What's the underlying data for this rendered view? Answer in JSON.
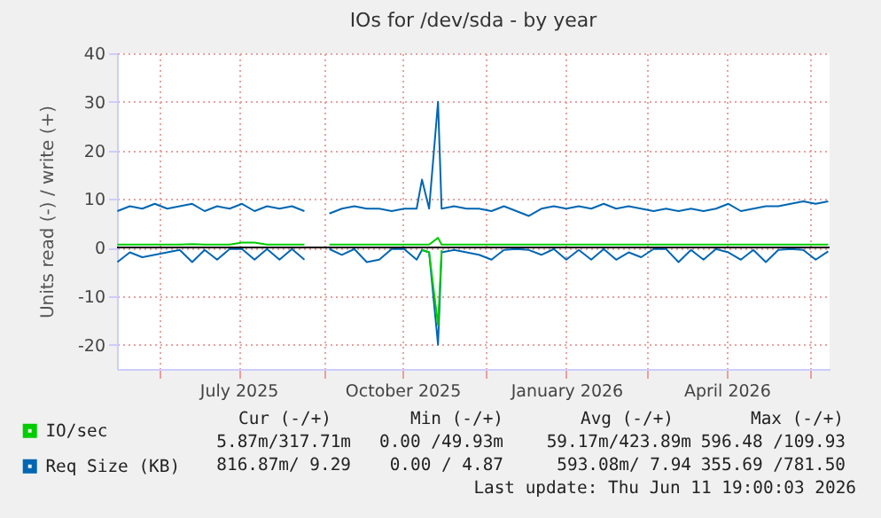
{
  "chart_data": {
    "type": "line",
    "title": "IOs for /dev/sda - by year",
    "ylabel": "Units read (-) / write (+)",
    "x": [
      "2025-05-08",
      "2025-05-15",
      "2025-05-22",
      "2025-05-29",
      "2025-06-05",
      "2025-06-12",
      "2025-06-19",
      "2025-06-26",
      "2025-07-03",
      "2025-07-10",
      "2025-07-17",
      "2025-07-24",
      "2025-07-31",
      "2025-08-07",
      "2025-08-14",
      "2025-08-21",
      "2025-08-28",
      "2025-09-04",
      "2025-09-11",
      "2025-09-18",
      "2025-09-25",
      "2025-10-02",
      "2025-10-09",
      "2025-10-16",
      "2025-10-23",
      "2025-10-26",
      "2025-10-30",
      "2025-11-04",
      "2025-11-06",
      "2025-11-13",
      "2025-11-20",
      "2025-11-27",
      "2025-12-04",
      "2025-12-11",
      "2025-12-18",
      "2025-12-25",
      "2026-01-01",
      "2026-01-08",
      "2026-01-15",
      "2026-01-22",
      "2026-01-29",
      "2026-02-05",
      "2026-02-12",
      "2026-02-19",
      "2026-02-26",
      "2026-03-05",
      "2026-03-12",
      "2026-03-19",
      "2026-03-26",
      "2026-04-02",
      "2026-04-09",
      "2026-04-16",
      "2026-04-23",
      "2026-04-30",
      "2026-05-07",
      "2026-05-14",
      "2026-05-21",
      "2026-05-28",
      "2026-06-04",
      "2026-06-11"
    ],
    "series": [
      {
        "name": "IO/sec",
        "color": "#00cc00",
        "values": [
          0.6,
          0.6,
          0.6,
          0.6,
          0.6,
          0.6,
          0.7,
          0.6,
          0.6,
          0.6,
          1,
          1,
          0.6,
          0.6,
          0.6,
          0.6,
          null,
          0.6,
          0.6,
          0.6,
          0.6,
          0.6,
          0.6,
          0.6,
          0.6,
          0.6,
          0.6,
          2,
          0.6,
          0.6,
          0.6,
          0.6,
          0.6,
          0.6,
          0.6,
          0.6,
          0.6,
          0.6,
          0.6,
          0.6,
          0.6,
          0.6,
          0.6,
          0.6,
          0.6,
          0.6,
          0.6,
          0.6,
          0.6,
          0.6,
          0.6,
          0.6,
          0.6,
          0.6,
          0.6,
          0.6,
          0.6,
          0.6,
          0.6,
          0.6
        ]
      },
      {
        "name": "Req Size (KB)",
        "color": "#0066b3",
        "values": [
          7.5,
          8.5,
          8,
          9,
          8,
          8.5,
          9,
          7.5,
          8.5,
          8,
          9,
          7.5,
          8.5,
          8,
          8.5,
          7.5,
          null,
          7,
          8,
          8.5,
          8,
          8,
          7.5,
          8,
          8,
          14,
          8,
          30,
          8,
          8.5,
          8,
          8,
          7.5,
          8.5,
          7.5,
          6.5,
          8,
          8.5,
          8,
          8.5,
          8,
          9,
          8,
          8.5,
          8,
          7.5,
          8,
          7.5,
          8,
          7.5,
          8,
          9,
          7.5,
          8,
          8.5,
          8.5,
          9,
          9.5,
          9,
          9.5
        ]
      },
      {
        "color": "#00cc00",
        "values": [
          null,
          null,
          null,
          null,
          null,
          null,
          null,
          null,
          null,
          null,
          null,
          null,
          null,
          null,
          null,
          null,
          null,
          null,
          null,
          null,
          null,
          null,
          null,
          null,
          null,
          -0.5,
          -1,
          -16,
          -0.5,
          null,
          null,
          null,
          null,
          null,
          null,
          null,
          null,
          null,
          null,
          null,
          null,
          null,
          null,
          null,
          null,
          null,
          null,
          null,
          null,
          null,
          null,
          null,
          null,
          null,
          null,
          null,
          null,
          null,
          null,
          null
        ]
      },
      {
        "color": "#0066b3",
        "values": [
          -3,
          -1,
          -2,
          -1.5,
          -1,
          -0.5,
          -3,
          -0.5,
          -2.5,
          -0.3,
          -0.3,
          -2.5,
          -0.3,
          -2.5,
          -0.3,
          -2.5,
          null,
          -0.3,
          -1.5,
          -0.3,
          -3,
          -2.5,
          -0.3,
          -0.3,
          -2.5,
          -0.5,
          -1,
          -20,
          -1,
          -0.5,
          -1,
          -1.5,
          -2.5,
          -0.5,
          -0.3,
          -0.5,
          -1.5,
          -0.3,
          -2.5,
          -0.5,
          -2.5,
          -0.3,
          -2.5,
          -1,
          -2,
          -0.3,
          -0.3,
          -3,
          -0.5,
          -2.5,
          -0.3,
          -1,
          -2.5,
          -0.5,
          -3,
          -0.5,
          -0.3,
          -0.5,
          -2.5,
          -0.8
        ]
      }
    ],
    "xlim": [
      "2025-05-07T19:00",
      "2026-06-11T19:00"
    ],
    "xticks": [
      {
        "value": "2025-06-01",
        "label": null
      },
      {
        "value": "2025-07-15",
        "label": "July 2025"
      },
      {
        "value": "2025-09-01",
        "label": null
      },
      {
        "value": "2025-10-15",
        "label": "October 2025"
      },
      {
        "value": "2025-12-01",
        "label": null
      },
      {
        "value": "2026-01-15",
        "label": "January 2026"
      },
      {
        "value": "2026-03-01",
        "label": null
      },
      {
        "value": "2026-04-15",
        "label": "April 2026"
      },
      {
        "value": "2026-06-01",
        "label": null
      }
    ],
    "ylim": [
      -25,
      40
    ],
    "yticks": [
      -20,
      -10,
      0,
      10,
      20,
      30,
      40
    ],
    "ref_lines": [
      {
        "axis": "y",
        "value": 0,
        "color": "#000000"
      }
    ],
    "grid": true,
    "legend": "bottom left",
    "line_style": "solid",
    "marker": "none",
    "annotations": [
      "Cur (-/+)",
      "Min (-/+)",
      "Avg (-/+)",
      "Max (-/+)",
      "5.87m/317.71m",
      "0.00 /49.93m",
      "59.17m/423.89m",
      "596.48 /109.93",
      "816.87m/ 9.29",
      "0.00 / 4.87",
      "593.08m/ 7.94",
      "355.69 /781.50",
      "Last update:  Thu Jun 11 19:00:03 2026"
    ]
  }
}
